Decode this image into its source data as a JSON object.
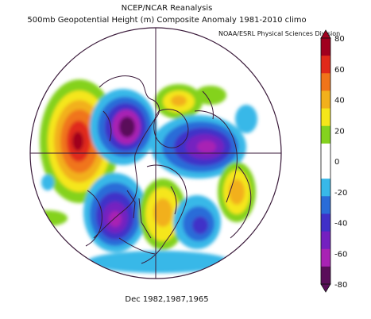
{
  "titles": {
    "line1": "NCEP/NCAR Reanalysis",
    "line2": "500mb Geopotential Height (m) Composite Anomaly 1981-2010 climo",
    "credit": "NOAA/ESRL Physical Sciences Division",
    "dates": "Dec 1982,1987,1965"
  },
  "colorbar": {
    "ticks": [
      "80",
      "60",
      "40",
      "20",
      "0",
      "-20",
      "-40",
      "-60",
      "-80"
    ],
    "colors": [
      "#a0001e",
      "#e02a1a",
      "#f0741a",
      "#f2b01c",
      "#f5e61a",
      "#84d21e",
      "#ffffff",
      "#ffffff",
      "#38b8e8",
      "#2a6cd8",
      "#4030c8",
      "#7420c0",
      "#a822b4",
      "#5a0e5a"
    ]
  },
  "map": {
    "projection": "north-polar-stereographic",
    "anomaly_centers": [
      {
        "sign": "positive",
        "region": "North Pacific / Bering",
        "value": 80
      },
      {
        "sign": "negative",
        "region": "Alaska / Arctic",
        "value": -80
      },
      {
        "sign": "negative",
        "region": "Greenland / Canadian Arctic",
        "value": -60
      },
      {
        "sign": "positive",
        "region": "Europe",
        "value": 40
      },
      {
        "sign": "negative",
        "region": "Eastern Siberia / Pacific",
        "value": -60
      },
      {
        "sign": "positive",
        "region": "Eastern North America",
        "value": 40
      },
      {
        "sign": "negative",
        "region": "North Atlantic",
        "value": -60
      },
      {
        "sign": "positive",
        "region": "Central Asia",
        "value": 40
      }
    ]
  }
}
